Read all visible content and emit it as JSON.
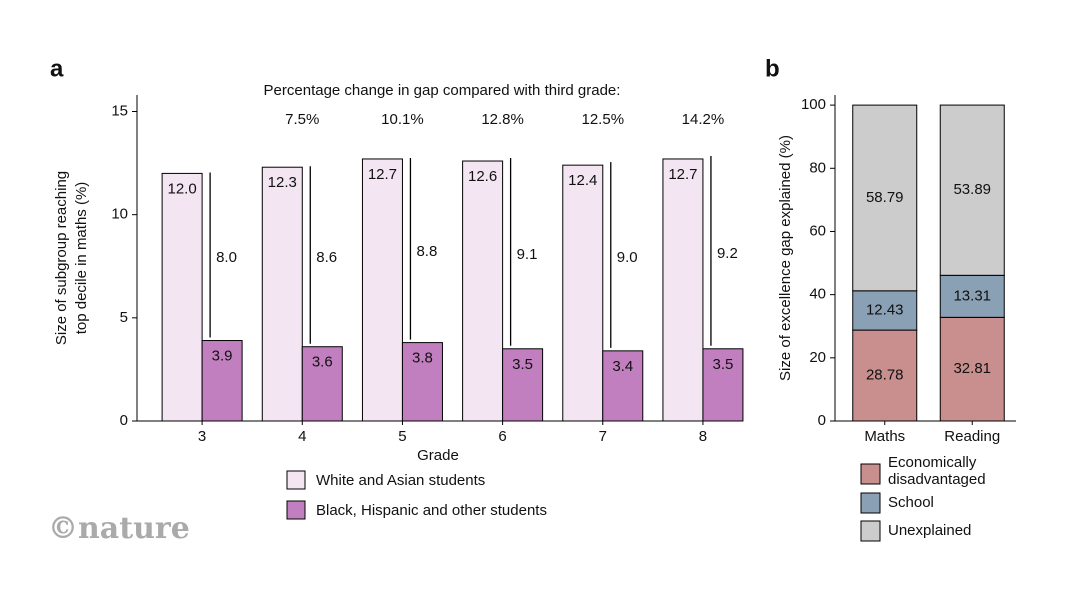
{
  "credit": "©nature",
  "chart_data": [
    {
      "type": "grouped_bar",
      "panel": "a",
      "subtitle": "Percentage change in gap compared with third grade:",
      "xlabel": "Grade",
      "ylabel": [
        "Size of subgroup reaching",
        "top decile in maths (%)"
      ],
      "categories": [
        "3",
        "4",
        "5",
        "6",
        "7",
        "8"
      ],
      "series": [
        {
          "name": "White and Asian students",
          "color": "#f3e6f2",
          "values": [
            12.0,
            12.3,
            12.7,
            12.6,
            12.4,
            12.7
          ],
          "value_labels": [
            "12.0",
            "12.3",
            "12.7",
            "12.6",
            "12.4",
            "12.7"
          ]
        },
        {
          "name": "Black, Hispanic and other students",
          "color": "#c27fc0",
          "values": [
            3.9,
            3.6,
            3.8,
            3.5,
            3.4,
            3.5
          ],
          "value_labels": [
            "3.9",
            "3.6",
            "3.8",
            "3.5",
            "3.4",
            "3.5"
          ]
        }
      ],
      "gaps": [
        8.0,
        8.6,
        8.8,
        9.1,
        9.0,
        9.2
      ],
      "gap_labels": [
        "8.0",
        "8.6",
        "8.8",
        "9.1",
        "9.0",
        "9.2"
      ],
      "gap_change": [
        null,
        7.5,
        10.1,
        12.8,
        12.5,
        14.2
      ],
      "gap_change_labels": [
        null,
        "7.5%",
        "10.1%",
        "12.8%",
        "12.5%",
        "14.2%"
      ],
      "ylim": [
        0,
        15.8
      ],
      "yticks": [
        0,
        5,
        10,
        15
      ]
    },
    {
      "type": "stacked_bar",
      "panel": "b",
      "ylabel": "Size of excellence gap explained (%)",
      "categories": [
        "Maths",
        "Reading"
      ],
      "series": [
        {
          "name": "Economically disadvantaged",
          "color": "#c98e8e",
          "values": [
            28.78,
            32.81
          ]
        },
        {
          "name": "School",
          "color": "#8aa0b4",
          "values": [
            12.43,
            13.31
          ]
        },
        {
          "name": "Unexplained",
          "color": "#cccccc",
          "values": [
            58.79,
            53.89
          ]
        }
      ],
      "ylim": [
        0,
        103.2
      ],
      "yticks": [
        0,
        20,
        40,
        60,
        80,
        100
      ]
    }
  ]
}
